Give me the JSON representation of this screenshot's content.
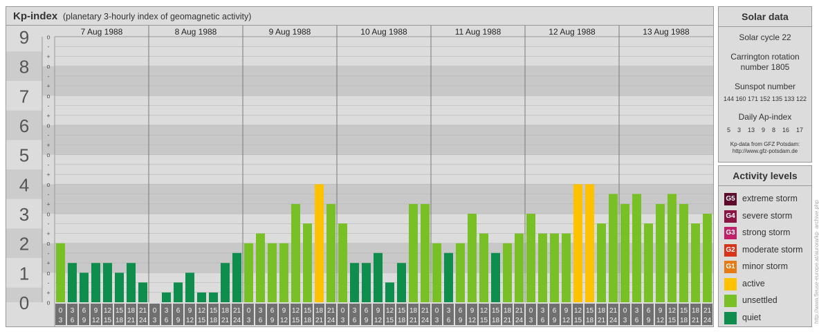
{
  "header": {
    "title": "Kp-index",
    "subtitle": "(planetary 3-hourly index of geomagnetic activity)"
  },
  "chart_data": {
    "type": "bar",
    "ylim": [
      0,
      9
    ],
    "y_tick_labels": [
      "0",
      "1",
      "2",
      "3",
      "4",
      "5",
      "6",
      "7",
      "8",
      "9"
    ],
    "sub_tick_labels": [
      "+",
      "o",
      "-"
    ],
    "days": [
      "7 Aug 1988",
      "8 Aug 1988",
      "9 Aug 1988",
      "10 Aug 1988",
      "11 Aug 1988",
      "12 Aug 1988",
      "13 Aug 1988"
    ],
    "interval_start_labels": [
      "0",
      "3",
      "6",
      "9",
      "12",
      "15",
      "18",
      "21"
    ],
    "interval_end_labels": [
      "3",
      "6",
      "9",
      "12",
      "15",
      "18",
      "21",
      "24"
    ],
    "values": [
      2.0,
      1.33,
      1.0,
      1.33,
      1.33,
      1.0,
      1.33,
      0.67,
      0.0,
      0.33,
      0.67,
      1.0,
      0.33,
      0.33,
      1.33,
      1.67,
      2.0,
      2.33,
      2.0,
      2.0,
      3.33,
      2.67,
      4.0,
      3.33,
      2.67,
      1.33,
      1.33,
      1.67,
      0.67,
      1.33,
      3.33,
      3.33,
      2.0,
      1.67,
      2.0,
      3.0,
      2.33,
      1.67,
      2.0,
      2.33,
      3.0,
      2.33,
      2.33,
      2.33,
      4.0,
      4.0,
      2.67,
      3.67,
      3.33,
      3.67,
      2.67,
      3.33,
      3.67,
      3.33,
      2.67,
      3.0
    ],
    "level_colors": {
      "quiet": "#0f8d4c",
      "unsettled": "#79bf26",
      "active": "#ffc200"
    }
  },
  "solar": {
    "title": "Solar data",
    "cycle": "Solar cycle 22",
    "carrington_line1": "Carrington rotation",
    "carrington_line2": "number 1805",
    "sunspot_title": "Sunspot number",
    "sunspot_values": "144 160 171 152 135 133 122",
    "ap_title": "Daily Ap-index",
    "ap_values": "5    3    13    9    8    16    17",
    "credit_line1": "Kp-data from GFZ Potsdam:",
    "credit_line2": "http://www.gfz-potsdam.de"
  },
  "activity": {
    "title": "Activity levels",
    "items": [
      {
        "code": "G5",
        "label": "extreme storm",
        "color": "#5e0a2a"
      },
      {
        "code": "G4",
        "label": "severe storm",
        "color": "#8a1545"
      },
      {
        "code": "G3",
        "label": "strong storm",
        "color": "#c0206a"
      },
      {
        "code": "G2",
        "label": "moderate storm",
        "color": "#d8341c"
      },
      {
        "code": "G1",
        "label": "minor storm",
        "color": "#e87a14"
      },
      {
        "code": "",
        "label": "active",
        "color": "#ffc200"
      },
      {
        "code": "",
        "label": "unsettled",
        "color": "#79bf26"
      },
      {
        "code": "",
        "label": "quiet",
        "color": "#0f8d4c"
      }
    ]
  },
  "side_credit": "http://www.fleuse-europe.at/aurora/kp_archive.php"
}
